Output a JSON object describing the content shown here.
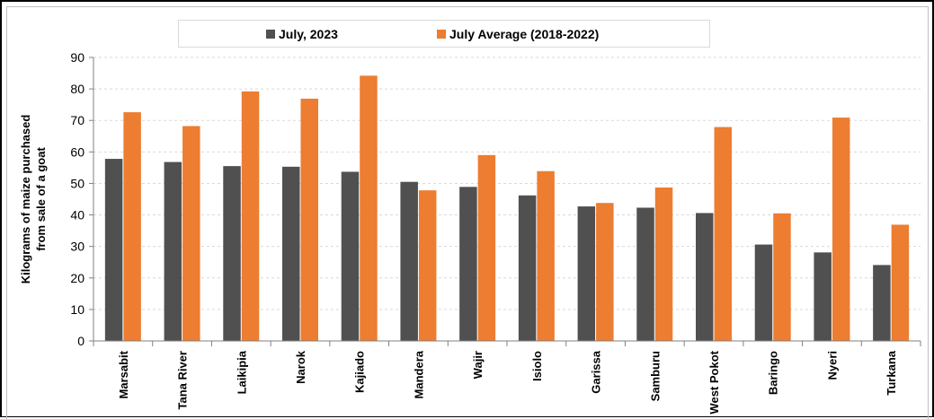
{
  "chart_data": {
    "type": "bar",
    "title": "",
    "xlabel": "",
    "ylabel": "Kilograms of maize purchased from sale of a goat",
    "ylabel_lines": [
      "Kilograms of maize purchased",
      "from sale of a goat"
    ],
    "ylim": [
      0,
      90
    ],
    "yticks": [
      0,
      10,
      20,
      30,
      40,
      50,
      60,
      70,
      80,
      90
    ],
    "grid": true,
    "legend_position": "top",
    "categories": [
      "Marsabit",
      "Tana River",
      "Laikipia",
      "Narok",
      "Kajiado",
      "Mandera",
      "Wajir",
      "Isiolo",
      "Garissa",
      "Samburu",
      "West Pokot",
      "Baringo",
      "Nyeri",
      "Turkana"
    ],
    "series": [
      {
        "name": "July, 2023",
        "color": "#505050",
        "values": [
          57.8,
          56.8,
          55.5,
          55.3,
          53.7,
          50.5,
          48.9,
          46.2,
          42.7,
          42.3,
          40.6,
          30.6,
          28.1,
          24.1
        ]
      },
      {
        "name": "July Average (2018-2022)",
        "color": "#ed7d31",
        "values": [
          72.6,
          68.2,
          79.2,
          76.9,
          84.2,
          47.8,
          59.0,
          53.9,
          43.8,
          48.7,
          67.9,
          40.5,
          70.9,
          36.9
        ]
      }
    ]
  }
}
